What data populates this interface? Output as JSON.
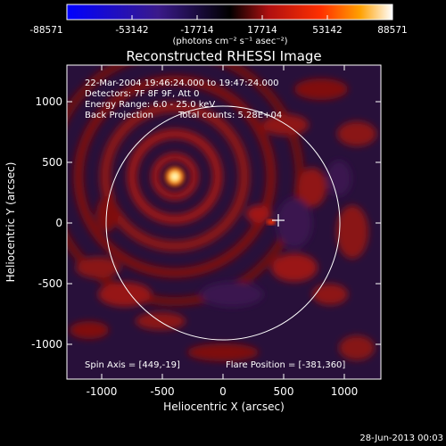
{
  "colorbar": {
    "tick_labels": [
      "-88571",
      "-53142",
      "-17714",
      "17714",
      "53142",
      "88571"
    ],
    "units_label": "(photons cm⁻² s⁻¹ asec⁻²)",
    "colors": [
      "#0000ff",
      "#3a1a8a",
      "#000000",
      "#b01010",
      "#ff3000",
      "#ffa000",
      "#ffffff"
    ]
  },
  "plot": {
    "title": "Reconstructed RHESSI Image",
    "xlabel": "Heliocentric X (arcsec)",
    "ylabel": "Heliocentric Y (arcsec)",
    "x_ticks": [
      "-1000",
      "-500",
      "0",
      "500",
      "1000"
    ],
    "y_ticks": [
      "1000",
      "500",
      "0",
      "-500",
      "-1000"
    ],
    "info_lines": [
      "22-Mar-2004 19:46:24.000 to 19:47:24.000",
      "Detectors: 7F 8F 9F, Att 0",
      "Energy Range: 6.0 - 25.0 keV",
      "Back Projection"
    ],
    "total_counts": "Total counts: 5.28E+04",
    "spin_axis": "Spin Axis = [449,-19]",
    "flare_position": "Flare Position = [-381,360]"
  },
  "footer": {
    "timestamp": "28-Jun-2013 00:03"
  }
}
